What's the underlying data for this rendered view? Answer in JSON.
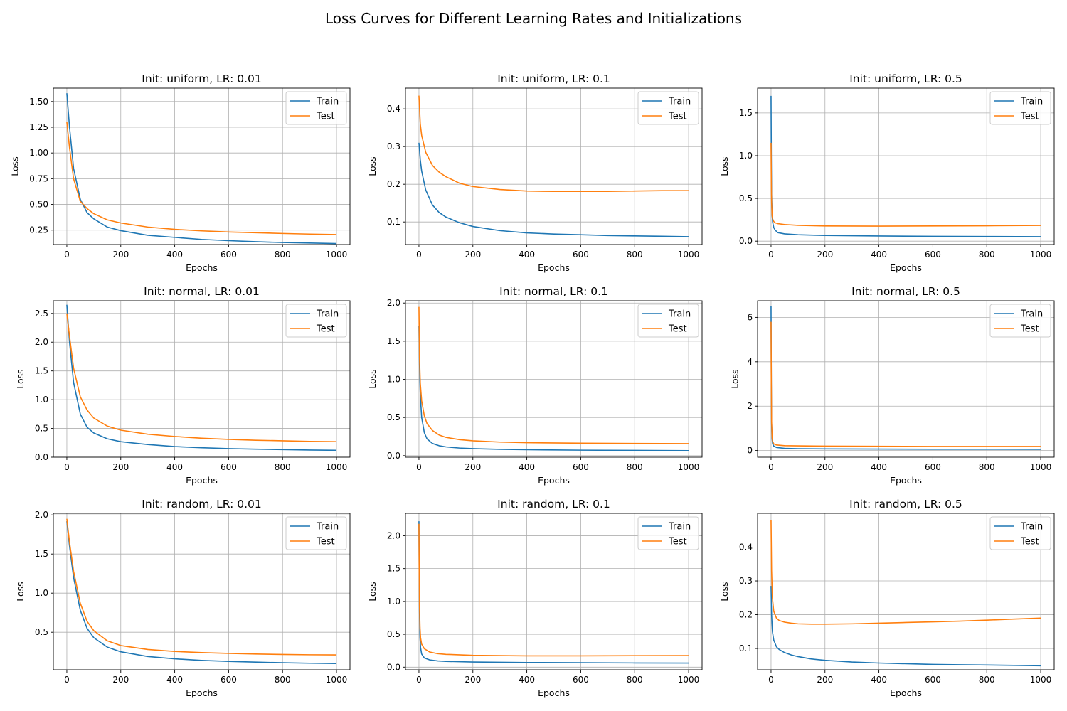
{
  "title": "Loss Curves for Different Learning Rates and Initializations",
  "colors": {
    "train": "#1f77b4",
    "test": "#ff7f0e",
    "grid": "#b0b0b0"
  },
  "chart_data": [
    {
      "type": "line",
      "title": "Init: uniform, LR: 0.01",
      "xlabel": "Epochs",
      "ylabel": "Loss",
      "xlim": [
        -50,
        1050
      ],
      "ylim": [
        0.11,
        1.63
      ],
      "xticks": [
        0,
        200,
        400,
        600,
        800,
        1000
      ],
      "yticks": [
        0.25,
        0.5,
        0.75,
        1.0,
        1.25,
        1.5
      ],
      "ytick_labels": [
        "0.25",
        "0.50",
        "0.75",
        "1.00",
        "1.25",
        "1.50"
      ],
      "grid": true,
      "legend": "upper right",
      "series": [
        {
          "name": "Train",
          "x": [
            0,
            10,
            25,
            50,
            75,
            100,
            150,
            200,
            300,
            400,
            500,
            600,
            700,
            800,
            900,
            1000
          ],
          "y": [
            1.58,
            1.25,
            0.85,
            0.55,
            0.42,
            0.36,
            0.28,
            0.245,
            0.2,
            0.18,
            0.16,
            0.148,
            0.138,
            0.13,
            0.125,
            0.12
          ]
        },
        {
          "name": "Test",
          "x": [
            0,
            10,
            25,
            50,
            75,
            100,
            150,
            200,
            300,
            400,
            500,
            600,
            700,
            800,
            900,
            1000
          ],
          "y": [
            1.3,
            1.05,
            0.75,
            0.53,
            0.46,
            0.41,
            0.35,
            0.32,
            0.28,
            0.258,
            0.243,
            0.232,
            0.225,
            0.218,
            0.212,
            0.207
          ]
        }
      ]
    },
    {
      "type": "line",
      "title": "Init: uniform, LR: 0.1",
      "xlabel": "Epochs",
      "ylabel": "Loss",
      "xlim": [
        -50,
        1050
      ],
      "ylim": [
        0.04,
        0.455
      ],
      "xticks": [
        0,
        200,
        400,
        600,
        800,
        1000
      ],
      "yticks": [
        0.1,
        0.2,
        0.3,
        0.4
      ],
      "ytick_labels": [
        "0.1",
        "0.2",
        "0.3",
        "0.4"
      ],
      "grid": true,
      "legend": "upper right",
      "series": [
        {
          "name": "Train",
          "x": [
            0,
            5,
            10,
            25,
            50,
            75,
            100,
            150,
            200,
            300,
            400,
            500,
            600,
            700,
            800,
            900,
            1000
          ],
          "y": [
            0.31,
            0.265,
            0.235,
            0.185,
            0.145,
            0.125,
            0.113,
            0.098,
            0.088,
            0.077,
            0.071,
            0.068,
            0.066,
            0.064,
            0.063,
            0.062,
            0.061
          ]
        },
        {
          "name": "Test",
          "x": [
            0,
            5,
            10,
            25,
            50,
            75,
            100,
            150,
            200,
            300,
            400,
            500,
            600,
            700,
            800,
            900,
            1000
          ],
          "y": [
            0.435,
            0.36,
            0.33,
            0.285,
            0.25,
            0.232,
            0.22,
            0.203,
            0.194,
            0.186,
            0.182,
            0.181,
            0.181,
            0.181,
            0.182,
            0.183,
            0.183
          ]
        }
      ]
    },
    {
      "type": "line",
      "title": "Init: uniform, LR: 0.5",
      "xlabel": "Epochs",
      "ylabel": "Loss",
      "xlim": [
        -50,
        1050
      ],
      "ylim": [
        -0.04,
        1.79
      ],
      "xticks": [
        0,
        200,
        400,
        600,
        800,
        1000
      ],
      "yticks": [
        0,
        0.5,
        1.0,
        1.5
      ],
      "ytick_labels": [
        "0.0",
        "0.5",
        "1.0",
        "1.5"
      ],
      "grid": true,
      "legend": "upper right",
      "series": [
        {
          "name": "Train",
          "x": [
            0,
            1,
            2,
            4,
            6,
            10,
            15,
            25,
            50,
            100,
            200,
            400,
            600,
            800,
            1000
          ],
          "y": [
            1.7,
            1.0,
            0.55,
            0.3,
            0.22,
            0.16,
            0.13,
            0.1,
            0.085,
            0.075,
            0.066,
            0.06,
            0.056,
            0.054,
            0.052
          ]
        },
        {
          "name": "Test",
          "x": [
            0,
            1,
            2,
            4,
            6,
            10,
            15,
            25,
            50,
            100,
            200,
            400,
            600,
            800,
            1000
          ],
          "y": [
            1.15,
            0.7,
            0.45,
            0.3,
            0.26,
            0.23,
            0.215,
            0.205,
            0.195,
            0.185,
            0.178,
            0.176,
            0.178,
            0.18,
            0.184
          ]
        }
      ]
    },
    {
      "type": "line",
      "title": "Init: normal, LR: 0.01",
      "xlabel": "Epochs",
      "ylabel": "Loss",
      "xlim": [
        -50,
        1050
      ],
      "ylim": [
        0.0,
        2.72
      ],
      "xticks": [
        0,
        200,
        400,
        600,
        800,
        1000
      ],
      "yticks": [
        0,
        0.5,
        1.0,
        1.5,
        2.0,
        2.5
      ],
      "ytick_labels": [
        "0.0",
        "0.5",
        "1.0",
        "1.5",
        "2.0",
        "2.5"
      ],
      "grid": true,
      "legend": "upper right",
      "series": [
        {
          "name": "Train",
          "x": [
            0,
            10,
            25,
            50,
            75,
            100,
            150,
            200,
            300,
            400,
            500,
            600,
            700,
            800,
            900,
            1000
          ],
          "y": [
            2.65,
            2.0,
            1.3,
            0.75,
            0.52,
            0.42,
            0.32,
            0.27,
            0.22,
            0.185,
            0.165,
            0.15,
            0.14,
            0.132,
            0.125,
            0.12
          ]
        },
        {
          "name": "Test",
          "x": [
            0,
            10,
            25,
            50,
            75,
            100,
            150,
            200,
            300,
            400,
            500,
            600,
            700,
            800,
            900,
            1000
          ],
          "y": [
            2.5,
            2.1,
            1.55,
            1.05,
            0.82,
            0.68,
            0.54,
            0.47,
            0.4,
            0.36,
            0.33,
            0.31,
            0.295,
            0.285,
            0.275,
            0.27
          ]
        }
      ]
    },
    {
      "type": "line",
      "title": "Init: normal, LR: 0.1",
      "xlabel": "Epochs",
      "ylabel": "Loss",
      "xlim": [
        -50,
        1050
      ],
      "ylim": [
        -0.02,
        2.03
      ],
      "xticks": [
        0,
        200,
        400,
        600,
        800,
        1000
      ],
      "yticks": [
        0,
        0.5,
        1.0,
        1.5,
        2.0
      ],
      "ytick_labels": [
        "0.0",
        "0.5",
        "1.0",
        "1.5",
        "2.0"
      ],
      "grid": true,
      "legend": "upper right",
      "series": [
        {
          "name": "Train",
          "x": [
            0,
            2,
            5,
            10,
            20,
            30,
            50,
            75,
            100,
            150,
            200,
            300,
            400,
            600,
            800,
            1000
          ],
          "y": [
            1.7,
            1.2,
            0.8,
            0.5,
            0.3,
            0.22,
            0.16,
            0.13,
            0.115,
            0.1,
            0.092,
            0.083,
            0.078,
            0.072,
            0.069,
            0.066
          ]
        },
        {
          "name": "Test",
          "x": [
            0,
            2,
            5,
            10,
            20,
            30,
            50,
            75,
            100,
            150,
            200,
            300,
            400,
            600,
            800,
            1000
          ],
          "y": [
            1.95,
            1.3,
            0.95,
            0.72,
            0.52,
            0.42,
            0.33,
            0.27,
            0.24,
            0.21,
            0.195,
            0.178,
            0.17,
            0.163,
            0.16,
            0.158
          ]
        }
      ]
    },
    {
      "type": "line",
      "title": "Init: normal, LR: 0.5",
      "xlabel": "Epochs",
      "ylabel": "Loss",
      "xlim": [
        -50,
        1050
      ],
      "ylim": [
        -0.3,
        6.75
      ],
      "xticks": [
        0,
        200,
        400,
        600,
        800,
        1000
      ],
      "yticks": [
        0,
        2,
        4,
        6
      ],
      "ytick_labels": [
        "0",
        "2",
        "4",
        "6"
      ],
      "grid": true,
      "legend": "upper right",
      "series": [
        {
          "name": "Train",
          "x": [
            0,
            1,
            2,
            4,
            6,
            10,
            20,
            50,
            100,
            200,
            400,
            600,
            800,
            1000
          ],
          "y": [
            6.5,
            3.0,
            1.2,
            0.5,
            0.3,
            0.2,
            0.14,
            0.1,
            0.085,
            0.075,
            0.065,
            0.06,
            0.058,
            0.055
          ]
        },
        {
          "name": "Test",
          "x": [
            0,
            1,
            2,
            4,
            6,
            10,
            20,
            50,
            100,
            200,
            400,
            600,
            800,
            1000
          ],
          "y": [
            5.8,
            3.0,
            1.3,
            0.6,
            0.4,
            0.3,
            0.25,
            0.22,
            0.21,
            0.2,
            0.19,
            0.185,
            0.185,
            0.185
          ]
        }
      ]
    },
    {
      "type": "line",
      "title": "Init: random, LR: 0.01",
      "xlabel": "Epochs",
      "ylabel": "Loss",
      "xlim": [
        -50,
        1050
      ],
      "ylim": [
        0.02,
        2.02
      ],
      "xticks": [
        0,
        200,
        400,
        600,
        800,
        1000
      ],
      "yticks": [
        0.5,
        1.0,
        1.5,
        2.0
      ],
      "ytick_labels": [
        "0.5",
        "1.0",
        "1.5",
        "2.0"
      ],
      "grid": true,
      "legend": "upper right",
      "series": [
        {
          "name": "Train",
          "x": [
            0,
            10,
            25,
            50,
            75,
            100,
            150,
            200,
            300,
            400,
            500,
            600,
            700,
            800,
            900,
            1000
          ],
          "y": [
            1.92,
            1.6,
            1.2,
            0.78,
            0.55,
            0.43,
            0.31,
            0.25,
            0.19,
            0.16,
            0.14,
            0.127,
            0.118,
            0.11,
            0.104,
            0.1
          ]
        },
        {
          "name": "Test",
          "x": [
            0,
            10,
            25,
            50,
            75,
            100,
            150,
            200,
            300,
            400,
            500,
            600,
            700,
            800,
            900,
            1000
          ],
          "y": [
            1.95,
            1.65,
            1.28,
            0.87,
            0.64,
            0.52,
            0.39,
            0.33,
            0.28,
            0.255,
            0.24,
            0.23,
            0.222,
            0.216,
            0.212,
            0.21
          ]
        }
      ]
    },
    {
      "type": "line",
      "title": "Init: random, LR: 0.1",
      "xlabel": "Epochs",
      "ylabel": "Loss",
      "xlim": [
        -50,
        1050
      ],
      "ylim": [
        -0.04,
        2.34
      ],
      "xticks": [
        0,
        200,
        400,
        600,
        800,
        1000
      ],
      "yticks": [
        0,
        0.5,
        1.0,
        1.5,
        2.0
      ],
      "ytick_labels": [
        "0.0",
        "0.5",
        "1.0",
        "1.5",
        "2.0"
      ],
      "grid": true,
      "legend": "upper right",
      "series": [
        {
          "name": "Train",
          "x": [
            0,
            1,
            2,
            4,
            6,
            10,
            20,
            40,
            70,
            100,
            200,
            400,
            600,
            800,
            1000
          ],
          "y": [
            2.22,
            1.4,
            0.85,
            0.45,
            0.3,
            0.2,
            0.14,
            0.11,
            0.095,
            0.088,
            0.078,
            0.071,
            0.067,
            0.064,
            0.062
          ]
        },
        {
          "name": "Test",
          "x": [
            0,
            1,
            2,
            4,
            6,
            10,
            20,
            40,
            70,
            100,
            200,
            400,
            600,
            800,
            1000
          ],
          "y": [
            2.18,
            1.45,
            0.95,
            0.6,
            0.45,
            0.35,
            0.28,
            0.23,
            0.205,
            0.195,
            0.18,
            0.172,
            0.172,
            0.174,
            0.176
          ]
        }
      ]
    },
    {
      "type": "line",
      "title": "Init: random, LR: 0.5",
      "xlabel": "Epochs",
      "ylabel": "Loss",
      "xlim": [
        -50,
        1050
      ],
      "ylim": [
        0.037,
        0.5
      ],
      "xticks": [
        0,
        200,
        400,
        600,
        800,
        1000
      ],
      "yticks": [
        0.1,
        0.2,
        0.3,
        0.4
      ],
      "ytick_labels": [
        "0.1",
        "0.2",
        "0.3",
        "0.4"
      ],
      "grid": true,
      "legend": "upper right",
      "series": [
        {
          "name": "Train",
          "x": [
            0,
            2,
            5,
            10,
            20,
            30,
            50,
            75,
            100,
            150,
            200,
            300,
            400,
            500,
            600,
            700,
            800,
            900,
            1000
          ],
          "y": [
            0.285,
            0.2,
            0.15,
            0.125,
            0.105,
            0.097,
            0.088,
            0.081,
            0.076,
            0.069,
            0.065,
            0.06,
            0.057,
            0.055,
            0.053,
            0.052,
            0.051,
            0.05,
            0.049
          ]
        },
        {
          "name": "Test",
          "x": [
            0,
            2,
            5,
            10,
            20,
            30,
            50,
            75,
            100,
            150,
            200,
            300,
            400,
            500,
            600,
            700,
            800,
            900,
            1000
          ],
          "y": [
            0.48,
            0.33,
            0.25,
            0.21,
            0.19,
            0.183,
            0.178,
            0.175,
            0.173,
            0.172,
            0.172,
            0.173,
            0.175,
            0.177,
            0.179,
            0.181,
            0.184,
            0.187,
            0.19
          ]
        }
      ]
    }
  ]
}
